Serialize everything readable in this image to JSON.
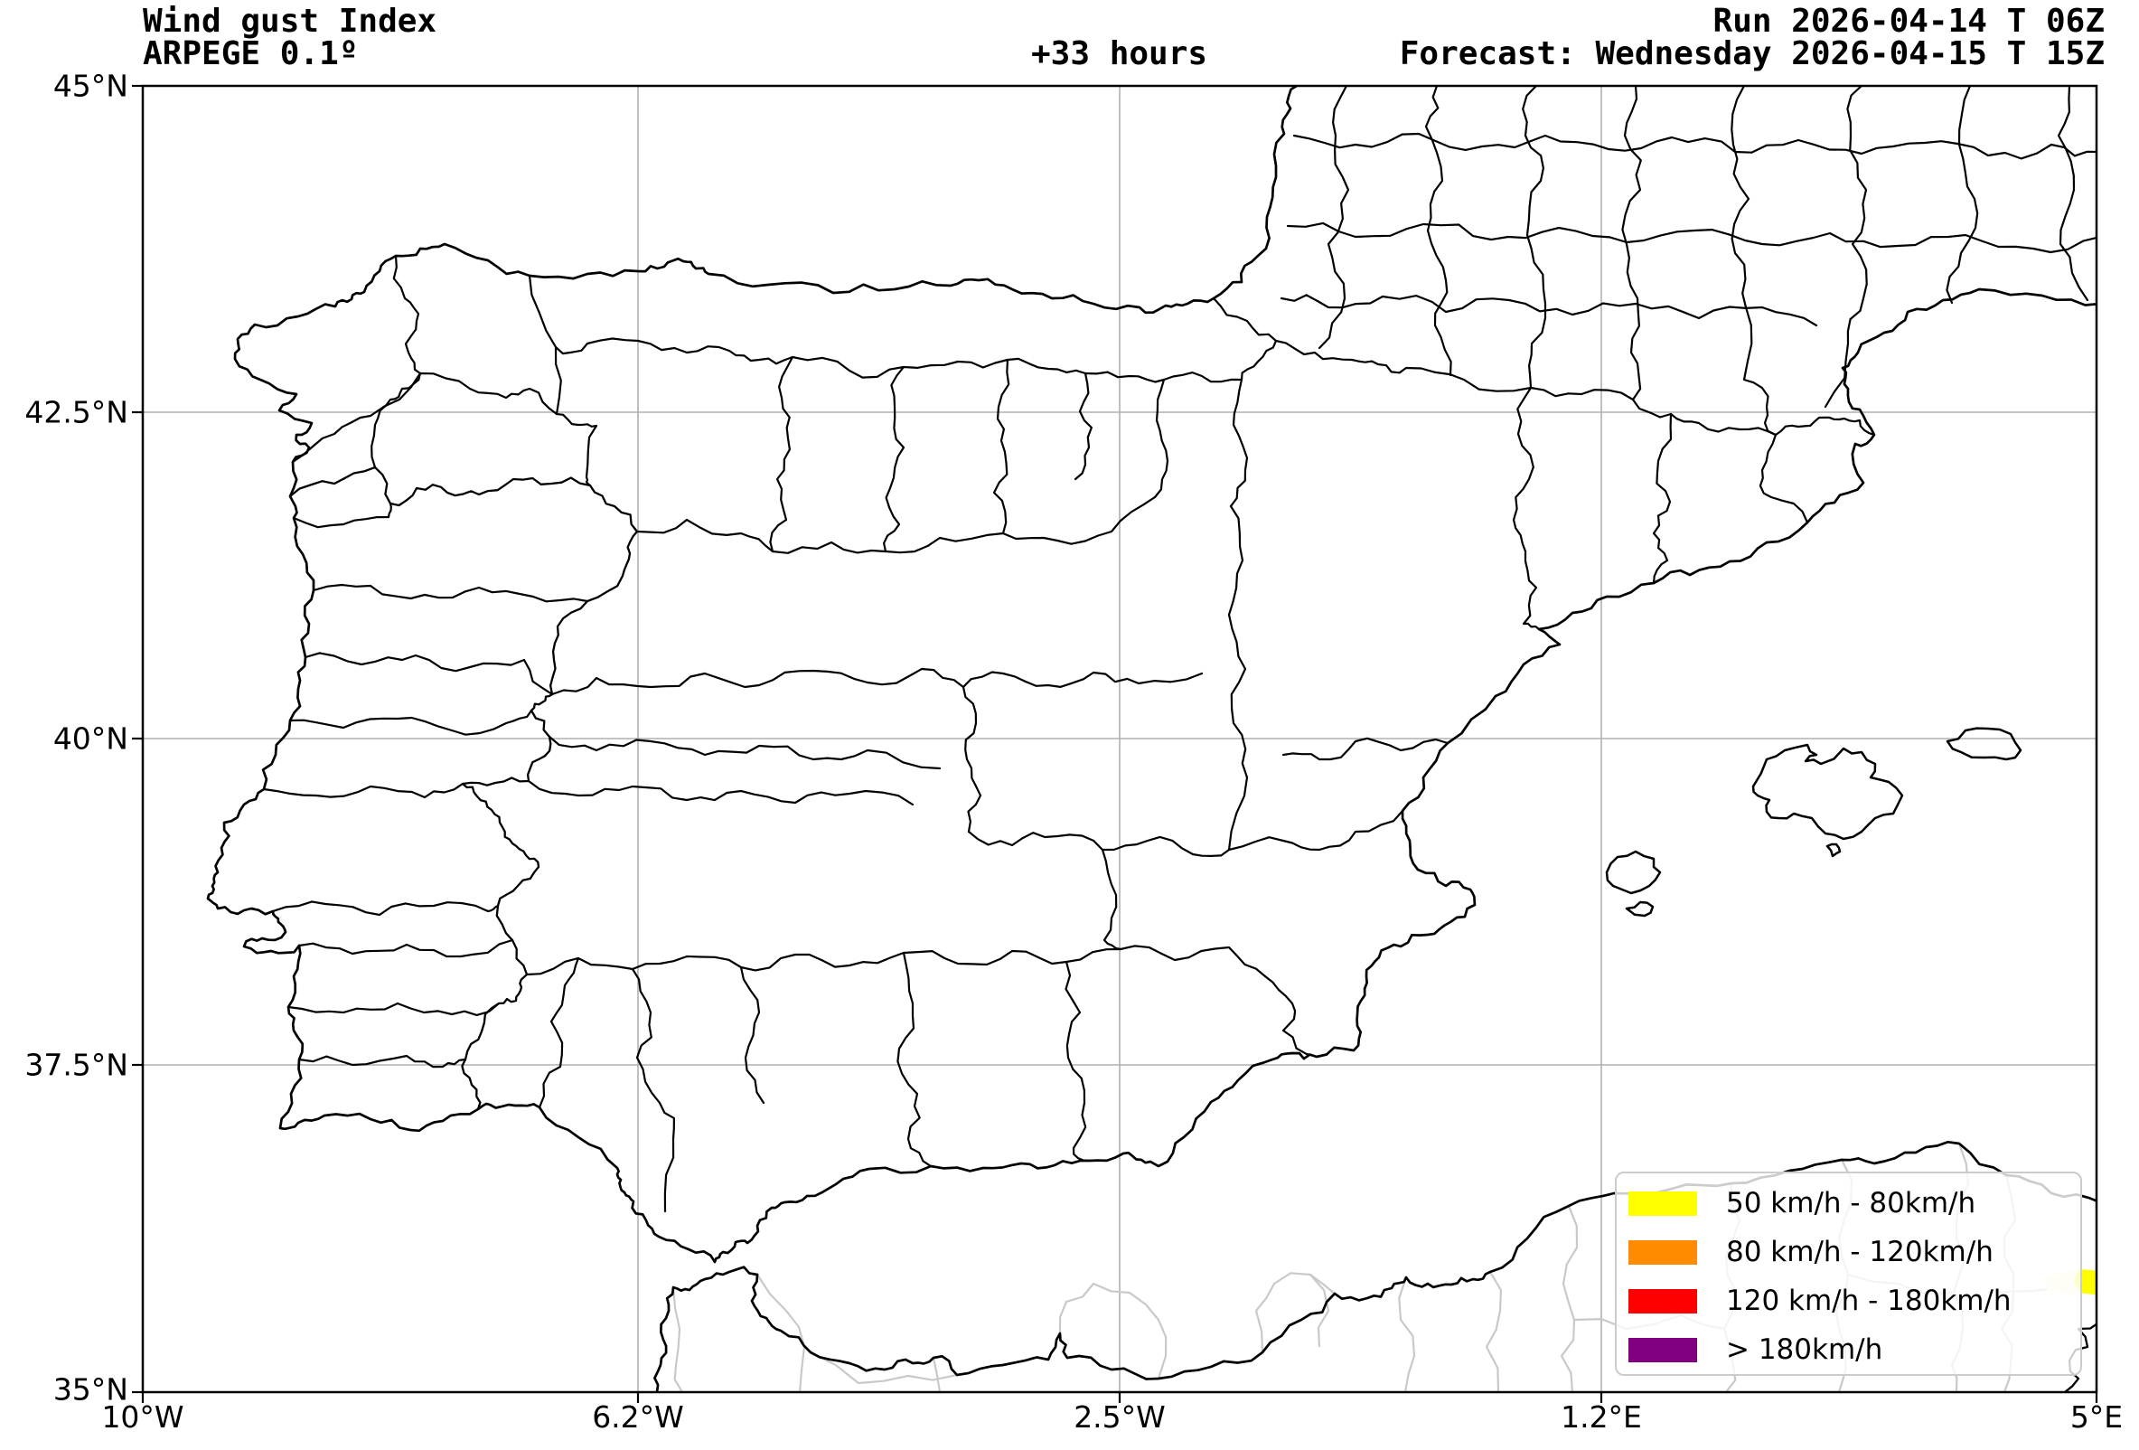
{
  "header": {
    "title": "Wind gust Index",
    "model": "ARPEGE 0.1º",
    "lead_time": "+33 hours",
    "run_label": "Run 2026-04-14 T 06Z",
    "forecast_label": "Forecast: Wednesday 2026-04-15 T 15Z"
  },
  "axes": {
    "lat_ticks": [
      "45°N",
      "42.5°N",
      "40°N",
      "37.5°N",
      "35°N"
    ],
    "lon_ticks": [
      "10°W",
      "6.2°W",
      "2.5°W",
      "1.2°E",
      "5°E"
    ]
  },
  "legend": {
    "items": [
      {
        "label": "50 km/h - 80km/h",
        "color": "#ffff00"
      },
      {
        "label": "80 km/h - 120km/h",
        "color": "#ff8c00"
      },
      {
        "label": "120 km/h - 180km/h",
        "color": "#ff0000"
      },
      {
        "label": "> 180km/h",
        "color": "#800080"
      }
    ]
  },
  "wind_overlay": {
    "patch_color": "#ffff00",
    "patch_halo_color": "#fbfbd0"
  }
}
